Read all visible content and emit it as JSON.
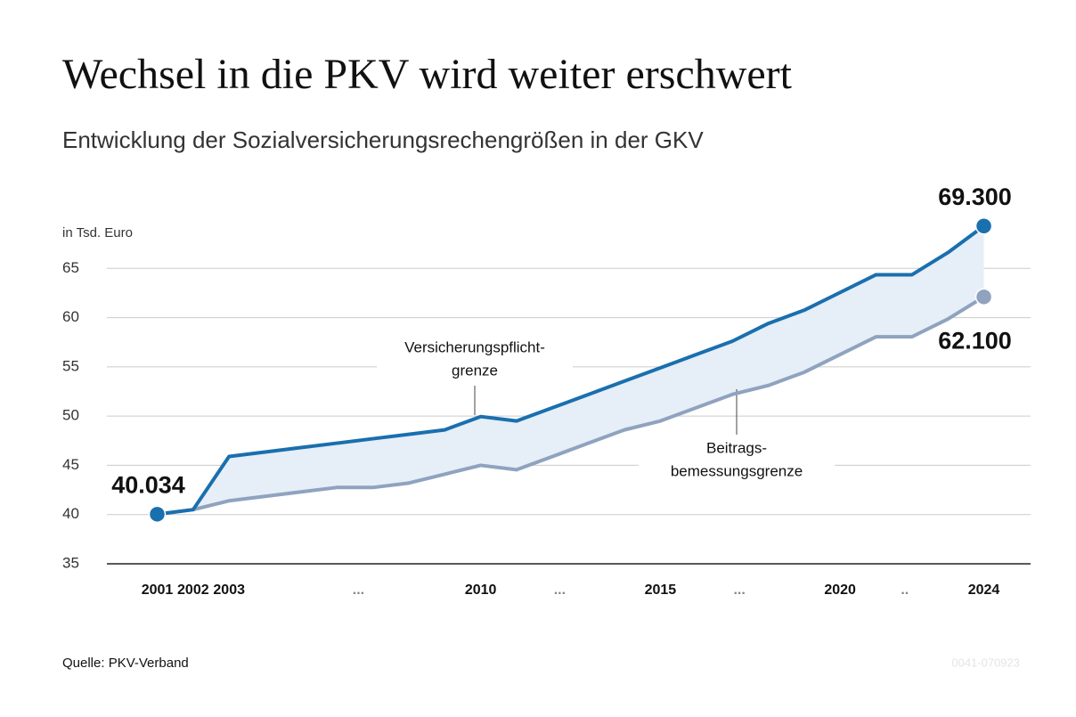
{
  "chart_data": {
    "type": "line",
    "title": "Wechsel in die PKV wird weiter erschwert",
    "subtitle": "Entwicklung der Sozialversicherungsrechengrößen in der GKV",
    "y_label": "in Tsd. Euro",
    "source": "Quelle: PKV-Verband",
    "code": "0041-070923",
    "x": [
      2001,
      2002,
      2003,
      2004,
      2005,
      2006,
      2007,
      2008,
      2009,
      2010,
      2011,
      2012,
      2013,
      2014,
      2015,
      2016,
      2017,
      2018,
      2019,
      2020,
      2021,
      2022,
      2023,
      2024
    ],
    "series": [
      {
        "name": [
          "Versicherungspflicht-",
          "grenze"
        ],
        "color": "#1a6fae",
        "values": [
          40.034,
          40.5,
          45.9,
          46.35,
          46.8,
          47.25,
          47.7,
          48.15,
          48.6,
          49.95,
          49.5,
          50.85,
          52.2,
          53.55,
          54.9,
          56.25,
          57.6,
          59.4,
          60.75,
          62.55,
          64.35,
          64.35,
          66.6,
          69.3
        ],
        "value_labels": [
          "40.034",
          null,
          null,
          null,
          null,
          null,
          null,
          null,
          null,
          null,
          null,
          null,
          null,
          null,
          null,
          null,
          null,
          null,
          null,
          null,
          null,
          null,
          null,
          "69.300"
        ]
      },
      {
        "name": [
          "Beitrags-",
          "bemessungsgrenze"
        ],
        "color": "#8fa3bf",
        "values": [
          40.034,
          40.5,
          41.4,
          41.85,
          42.3,
          42.75,
          42.75,
          43.2,
          44.1,
          45.0,
          44.55,
          45.9,
          47.25,
          48.6,
          49.5,
          50.85,
          52.2,
          53.1,
          54.45,
          56.25,
          58.05,
          58.05,
          59.85,
          62.1
        ],
        "value_labels": [
          null,
          null,
          null,
          null,
          null,
          null,
          null,
          null,
          null,
          null,
          null,
          null,
          null,
          null,
          null,
          null,
          null,
          null,
          null,
          null,
          null,
          null,
          null,
          "62.100"
        ]
      }
    ],
    "area_color": "#e6eef7",
    "xlim": [
      1999.6,
      2025.3
    ],
    "xticks": [
      2001,
      2002,
      2003,
      {
        "value": 2006.6,
        "label": "..."
      },
      2010,
      {
        "value": 2012.2,
        "label": "..."
      },
      2015,
      {
        "value": 2017.2,
        "label": "..."
      },
      2020,
      {
        "value": 2021.8,
        "label": ".."
      },
      2024
    ],
    "ylim": [
      35,
      70
    ],
    "yticks": [
      35,
      40,
      45,
      50,
      55,
      60,
      65
    ],
    "grid": true
  }
}
